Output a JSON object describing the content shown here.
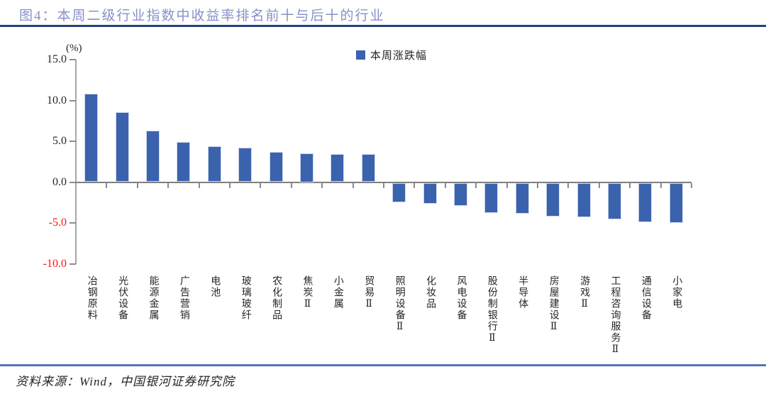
{
  "header": {
    "title": "图4：本周二级行业指数中收益率排名前十与后十的行业"
  },
  "footer": {
    "source": "资料来源：Wind，中国银河证券研究院"
  },
  "chart_data": {
    "type": "bar",
    "title": "本周二级行业指数中收益率排名前十与后十的行业",
    "unit_label": "(%)",
    "legend": [
      "本周涨跌幅"
    ],
    "legend_position": "top-center",
    "categories": [
      "冶钢原料",
      "光伏设备",
      "能源金属",
      "广告营销",
      "电池",
      "玻璃玻纤",
      "农化制品",
      "焦炭Ⅱ",
      "小金属",
      "贸易Ⅱ",
      "照明设备Ⅱ",
      "化妆品",
      "风电设备",
      "股份制银行Ⅱ",
      "半导体",
      "房屋建设Ⅱ",
      "游戏Ⅱ",
      "工程咨询服务Ⅱ",
      "通信设备",
      "小家电"
    ],
    "values": [
      10.8,
      8.6,
      6.3,
      4.9,
      4.4,
      4.2,
      3.7,
      3.5,
      3.4,
      3.4,
      -2.4,
      -2.6,
      -2.8,
      -3.7,
      -3.8,
      -4.1,
      -4.2,
      -4.5,
      -4.8,
      -4.9
    ],
    "ylim": [
      -10,
      15
    ],
    "yticks": [
      15.0,
      10.0,
      5.0,
      0.0,
      -5.0,
      -10.0
    ],
    "ytick_labels": [
      "15.0",
      "10.0",
      "5.0",
      "0.0",
      "-5.0",
      "-10.0"
    ],
    "grid": false,
    "xlabel": "",
    "ylabel": "",
    "colors": {
      "bar": "#3A62AD",
      "title": "#8790C6",
      "header_rule": "#24407C",
      "footer_rule": "#5673B5",
      "negative_tick_label": "#FF1111",
      "axis": "#8c8c8c"
    }
  }
}
